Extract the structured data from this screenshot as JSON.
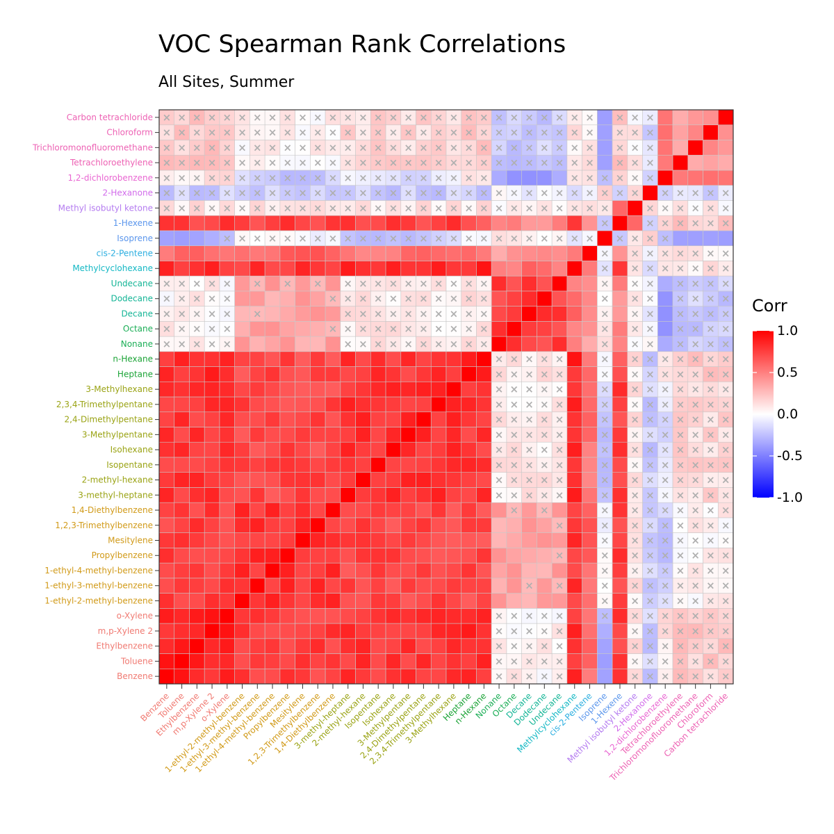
{
  "chart_data": {
    "type": "heatmap",
    "title": "VOC Spearman Rank Correlations",
    "subtitle": "All Sites, Summer",
    "variables": [
      {
        "name": "Benzene",
        "color": "#F07A72"
      },
      {
        "name": "Toluene",
        "color": "#F07A72"
      },
      {
        "name": "Ethylbenzene",
        "color": "#F07A72"
      },
      {
        "name": "m,p-Xylene  2",
        "color": "#F07A72"
      },
      {
        "name": "o-Xylene",
        "color": "#F07A72"
      },
      {
        "name": "1-ethyl-2-methyl-benzene",
        "color": "#D19A18"
      },
      {
        "name": "1-ethyl-3-methyl-benzene",
        "color": "#D19A18"
      },
      {
        "name": "1-ethyl-4-methyl-benzene",
        "color": "#D19A18"
      },
      {
        "name": "Propylbenzene",
        "color": "#D19A18"
      },
      {
        "name": "Mesitylene",
        "color": "#D19A18"
      },
      {
        "name": "1,2,3-Trimethylbenzene",
        "color": "#D19A18"
      },
      {
        "name": "1,4-Diethylbenzene",
        "color": "#D19A18"
      },
      {
        "name": "3-methyl-heptane",
        "color": "#9AA314"
      },
      {
        "name": "2-methyl-hexane",
        "color": "#9AA314"
      },
      {
        "name": "Isopentane",
        "color": "#9AA314"
      },
      {
        "name": "Isohexane",
        "color": "#9AA314"
      },
      {
        "name": "3-Methylpentane",
        "color": "#9AA314"
      },
      {
        "name": "2,4-Dimethylpentane",
        "color": "#9AA314"
      },
      {
        "name": "2,3,4-Trimethylpentane",
        "color": "#9AA314"
      },
      {
        "name": "3-Methylhexane",
        "color": "#9AA314"
      },
      {
        "name": "Heptane",
        "color": "#1BA336"
      },
      {
        "name": "n-Hexane",
        "color": "#1BA336"
      },
      {
        "name": "Nonane",
        "color": "#1BAE56"
      },
      {
        "name": "Octane",
        "color": "#1BAE56"
      },
      {
        "name": "Decane",
        "color": "#14B596"
      },
      {
        "name": "Dodecane",
        "color": "#14B596"
      },
      {
        "name": "Undecane",
        "color": "#14B596"
      },
      {
        "name": "Methylcyclohexane",
        "color": "#14B8C4"
      },
      {
        "name": "cis-2-Pentene",
        "color": "#2BAEE0"
      },
      {
        "name": "Isoprene",
        "color": "#5B96EC"
      },
      {
        "name": "1-Hexene",
        "color": "#5B96EC"
      },
      {
        "name": "Methyl isobutyl ketone",
        "color": "#B47BF0"
      },
      {
        "name": "2-Hexanone",
        "color": "#D26CEB"
      },
      {
        "name": "1,2-dichlorobenzene",
        "color": "#E966D2"
      },
      {
        "name": "Tetrachloroethylene",
        "color": "#ED62B4"
      },
      {
        "name": "Trichloromonofluoromethane",
        "color": "#ED62B4"
      },
      {
        "name": "Chloroform",
        "color": "#ED62B4"
      },
      {
        "name": "Carbon tetrachloride",
        "color": "#ED62B4"
      }
    ],
    "groups": {
      "aromatics": [
        0,
        1,
        2,
        3,
        4
      ],
      "c9_aromatics": [
        5,
        6,
        7,
        8,
        9,
        10,
        11
      ],
      "branched": [
        12,
        13,
        14,
        15,
        16,
        17,
        18,
        19
      ],
      "light_alkanes": [
        20,
        21
      ],
      "heavy_alkanes": [
        22,
        23,
        24,
        25,
        26
      ],
      "mch": [
        27
      ],
      "c2p": [
        28
      ],
      "isoprene": [
        29
      ],
      "hexene": [
        30
      ],
      "mibk": [
        31
      ],
      "hexanone": [
        32
      ],
      "dcb": [
        33
      ],
      "halo": [
        34,
        35,
        36,
        37
      ]
    },
    "legend": {
      "title": "Corr",
      "position": "right",
      "ticks": [
        "1.0",
        "0.5",
        "0.0",
        "-0.5",
        "-1.0"
      ],
      "range": [
        -1,
        1
      ],
      "colors": {
        "low": "#0000FF",
        "mid": "#FFFFFF",
        "high": "#FF0000"
      }
    },
    "insignificant_marker": "×",
    "grid": true
  }
}
